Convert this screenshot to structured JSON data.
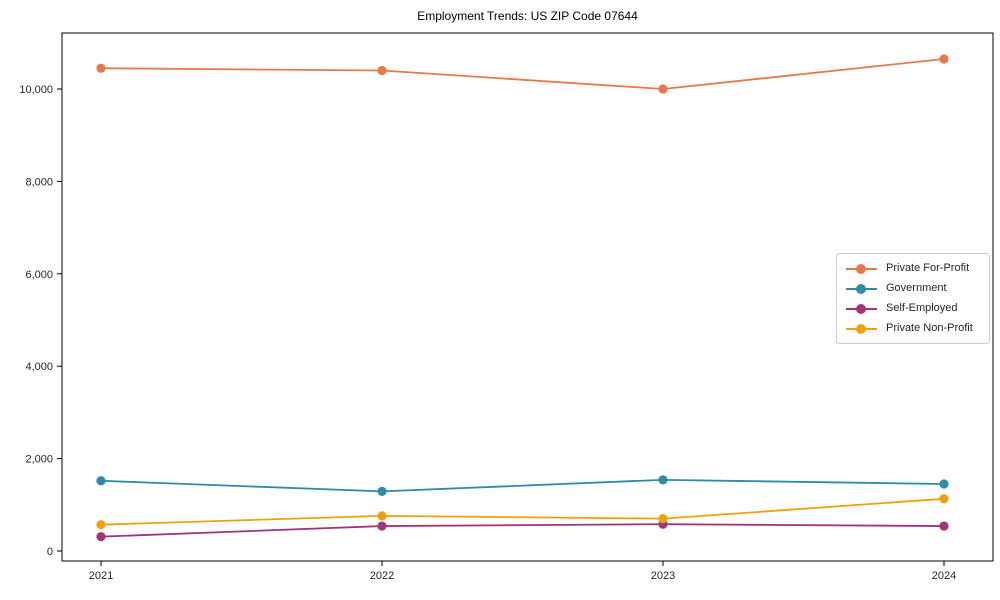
{
  "figure": {
    "title": "Employment Trends: US ZIP Code 07644"
  },
  "chart_data": {
    "type": "line",
    "title": "Employment Trends: US ZIP Code 07644",
    "categories": [
      "2021",
      "2022",
      "2023",
      "2024"
    ],
    "series": [
      {
        "name": "Private For-Profit",
        "color": "#e5794c",
        "values": [
          10450,
          10400,
          10000,
          10650
        ]
      },
      {
        "name": "Government",
        "color": "#2f8ba8",
        "values": [
          1520,
          1290,
          1540,
          1450
        ]
      },
      {
        "name": "Self-Employed",
        "color": "#a23479",
        "values": [
          310,
          540,
          580,
          540
        ]
      },
      {
        "name": "Private Non-Profit",
        "color": "#efa00e",
        "values": [
          570,
          760,
          700,
          1130
        ]
      }
    ],
    "xlabel": "",
    "ylabel": "",
    "ylim": [
      0,
      11150
    ],
    "yticks": [
      0,
      2000,
      4000,
      6000,
      8000,
      10000
    ],
    "ytick_labels": [
      "0",
      "2,000",
      "4,000",
      "6,000",
      "8,000",
      "10,000"
    ],
    "grid": false,
    "marker": "circle",
    "legend_position": "center-right",
    "legend_framed": true
  }
}
